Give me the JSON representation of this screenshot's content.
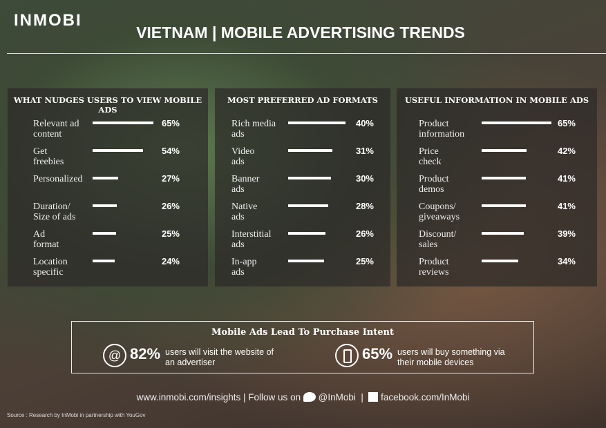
{
  "header": {
    "logo": "INMOBI",
    "title": "VIETNAM | MOBILE ADVERTISING TRENDS"
  },
  "chart_data": [
    {
      "type": "bar",
      "title": "WHAT NUDGES USERS TO VIEW MOBILE ADS",
      "categories": [
        "Relevant ad\ncontent",
        "Get\nfreebies",
        "Personalized",
        "Duration/\nSize of ads",
        "Ad\nformat",
        "Location\nspecific"
      ],
      "values": [
        65,
        54,
        27,
        26,
        25,
        24
      ],
      "value_labels": [
        "65%",
        "54%",
        "27%",
        "26%",
        "25%",
        "24%"
      ],
      "color": "#ffffff"
    },
    {
      "type": "bar",
      "title": "MOST PREFERRED AD FORMATS",
      "categories": [
        "Rich media\nads",
        "Video\nads",
        "Banner\nads",
        "Native\nads",
        "Interstitial\nads",
        "In-app\nads"
      ],
      "values": [
        40,
        31,
        30,
        28,
        26,
        25
      ],
      "value_labels": [
        "40%",
        "31%",
        "30%",
        "28%",
        "26%",
        "25%"
      ],
      "color": "#ffffff"
    },
    {
      "type": "bar",
      "title": "USEFUL INFORMATION IN MOBILE ADS",
      "categories": [
        "Product\ninformation",
        "Price\ncheck",
        "Product\ndemos",
        "Coupons/\ngiveaways",
        "Discount/\nsales",
        "Product\nreviews"
      ],
      "values": [
        65,
        42,
        41,
        41,
        39,
        34
      ],
      "value_labels": [
        "65%",
        "42%",
        "41%",
        "41%",
        "39%",
        "34%"
      ],
      "color": "#ffffff"
    }
  ],
  "intent": {
    "title": "Mobile Ads Lead To Purchase Intent",
    "items": [
      {
        "icon": "@",
        "stat": "82%",
        "text": "users will visit the website of\nan advertiser"
      },
      {
        "stat": "65%",
        "text": "users will buy something via\ntheir mobile devices"
      }
    ]
  },
  "footer": {
    "site": "www.inmobi.com/insights | Follow us on",
    "twitter": "@InMobi",
    "sep": "|",
    "facebook": "facebook.com/InMobi",
    "source": "Source : Research by InMobi in partnership with YouGov"
  }
}
